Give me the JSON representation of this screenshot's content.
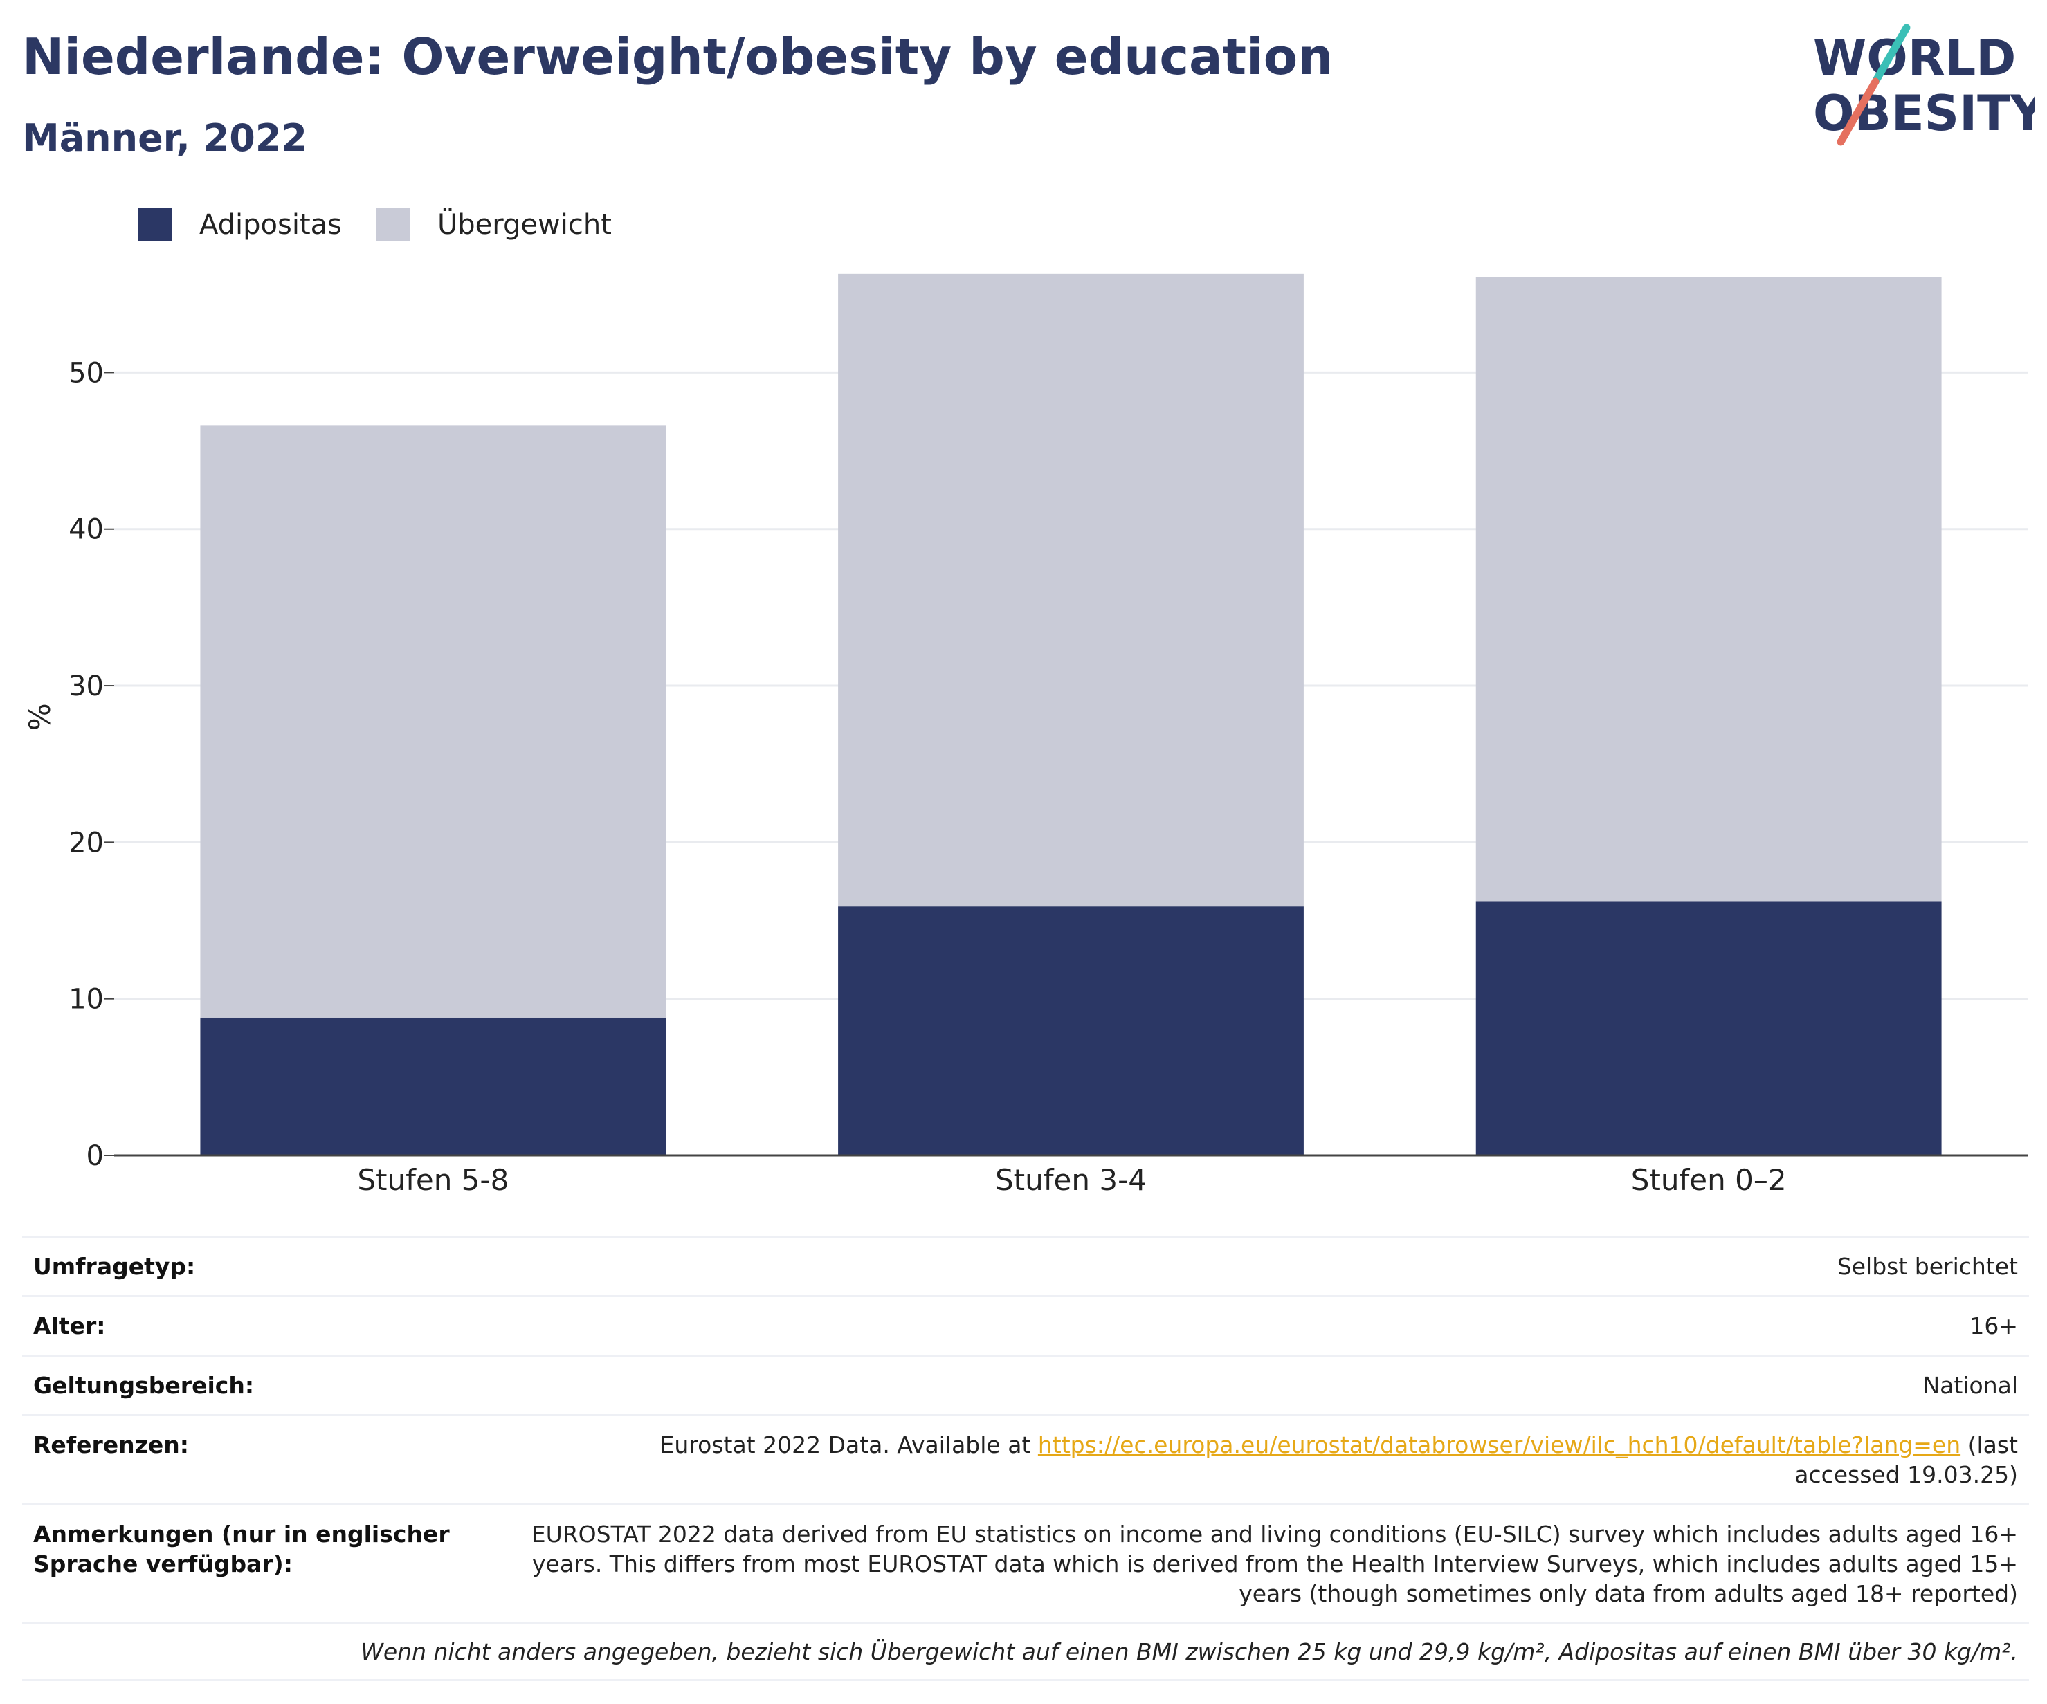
{
  "header": {
    "title": "Niederlande: Overweight/obesity by education",
    "subtitle": "Männer, 2022"
  },
  "logo": {
    "line1": "WORLD",
    "line2": "OBESITY"
  },
  "colors": {
    "obesity": "#2b3765",
    "overweight": "#c9cbd7",
    "grid": "#e9ebef",
    "link": "#e6a817"
  },
  "chart_data": {
    "type": "bar",
    "stacked": true,
    "ylabel": "%",
    "ylim": [
      0,
      57
    ],
    "yticks": [
      0,
      10,
      20,
      30,
      40,
      50
    ],
    "grid": true,
    "legend": "top-left",
    "categories": [
      "Stufen 5-8",
      "Stufen 3-4",
      "Stufen 0–2"
    ],
    "series": [
      {
        "name": "Adipositas",
        "color": "#2b3765",
        "values": [
          8.8,
          15.9,
          16.2
        ]
      },
      {
        "name": "Übergewicht",
        "color": "#c9cbd7",
        "values": [
          37.8,
          40.4,
          39.9
        ]
      }
    ]
  },
  "info": {
    "survey_type": {
      "label": "Umfragetyp:",
      "value": "Selbst berichtet"
    },
    "age": {
      "label": "Alter:",
      "value": "16+"
    },
    "coverage": {
      "label": "Geltungsbereich:",
      "value": "National"
    },
    "references": {
      "label": "Referenzen:",
      "prefix": "Eurostat 2022 Data. Available at ",
      "link": "https://ec.europa.eu/eurostat/databrowser/view/ilc_hch10/default/table?lang=en",
      "suffix": " (last accessed 19.03.25)"
    },
    "notes": {
      "label": "Anmerkungen (nur in englischer Sprache verfügbar):",
      "value": "EUROSTAT 2022 data derived from EU statistics on income and living conditions (EU-SILC) survey which includes adults aged 16+ years. This differs from most EUROSTAT data which is derived from the Health Interview Surveys, which includes adults aged 15+ years (though sometimes only data from adults aged 18+ reported)"
    },
    "footnote": "Wenn nicht anders angegeben, bezieht sich Übergewicht auf einen BMI zwischen 25 kg und 29,9 kg/m², Adipositas auf einen BMI über 30 kg/m²."
  }
}
